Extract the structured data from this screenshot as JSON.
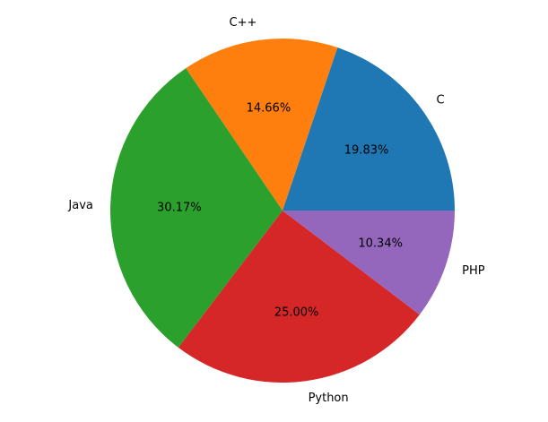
{
  "chart_data": {
    "type": "pie",
    "categories": [
      "C",
      "C++",
      "Java",
      "Python",
      "PHP"
    ],
    "values": [
      19.83,
      14.66,
      30.17,
      25.0,
      10.34
    ],
    "percent_labels": [
      "19.83%",
      "14.66%",
      "30.17%",
      "25.00%",
      "10.34%"
    ],
    "colors": [
      "#1f77b4",
      "#ff7f0e",
      "#2ca02c",
      "#d62728",
      "#9467bd"
    ],
    "start_angle_deg": 0,
    "direction": "counterclockwise",
    "title": "",
    "legend": "none"
  }
}
